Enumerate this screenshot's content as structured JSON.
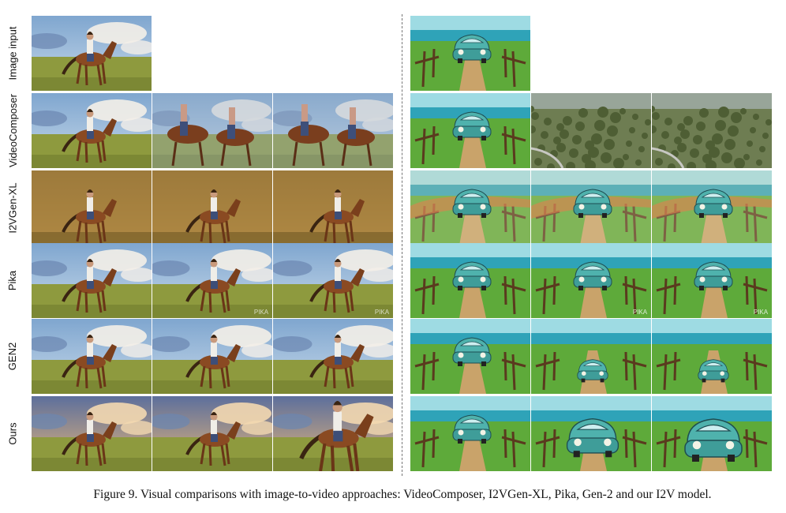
{
  "figure": {
    "row_labels": [
      "Image input",
      "VideoComposer",
      "I2VGen-XL",
      "Pika",
      "GEN2",
      "Ours"
    ],
    "caption": "Figure 9. Visual comparisons with image-to-video approaches: VideoComposer, I2VGen-XL, Pika, Gen-2 and our I2V model.",
    "watermark": "PIKA",
    "colors": {
      "sky_blue": "#8fb3d6",
      "grass_green": "#8d9a3f",
      "sea_teal": "#3ab3c0",
      "car_teal": "#4fb2ad",
      "horse_brown": "#8a4a22"
    }
  }
}
